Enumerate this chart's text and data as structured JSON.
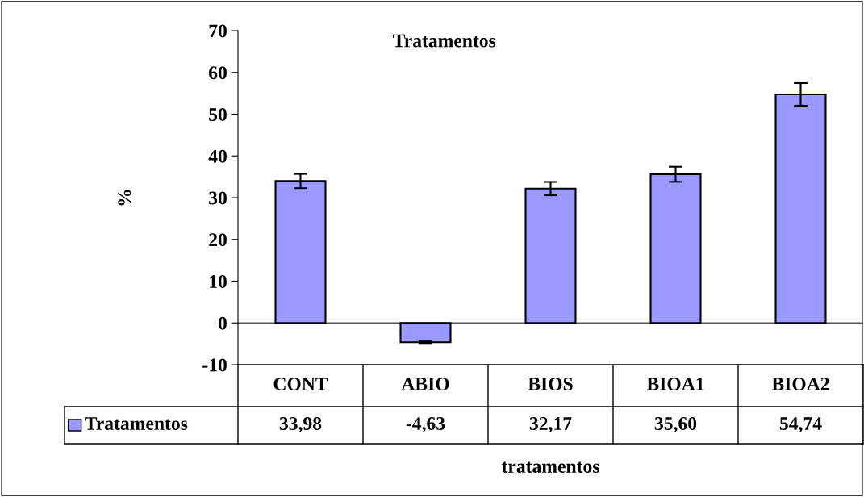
{
  "chart_data": {
    "type": "bar",
    "title": "Tratamentos",
    "xlabel": "tratamentos",
    "ylabel": "%",
    "categories": [
      "CONT",
      "ABIO",
      "BIOS",
      "BIOA1",
      "BIOA2"
    ],
    "series": [
      {
        "name": "Tratamentos",
        "color": "#9999ff",
        "values": [
          33.98,
          -4.63,
          32.17,
          35.6,
          54.74
        ],
        "errors": [
          1.7,
          0.2,
          1.6,
          1.8,
          2.7
        ],
        "value_labels": [
          "33,98",
          "-4,63",
          "32,17",
          "35,60",
          "54,74"
        ]
      }
    ],
    "ylim": [
      -10,
      70
    ],
    "yticks": [
      -10,
      0,
      10,
      20,
      30,
      40,
      50,
      60,
      70
    ],
    "ref_lines": [
      {
        "axis": "y",
        "value": 0,
        "color": "#555555"
      }
    ],
    "legend": "bottom"
  }
}
